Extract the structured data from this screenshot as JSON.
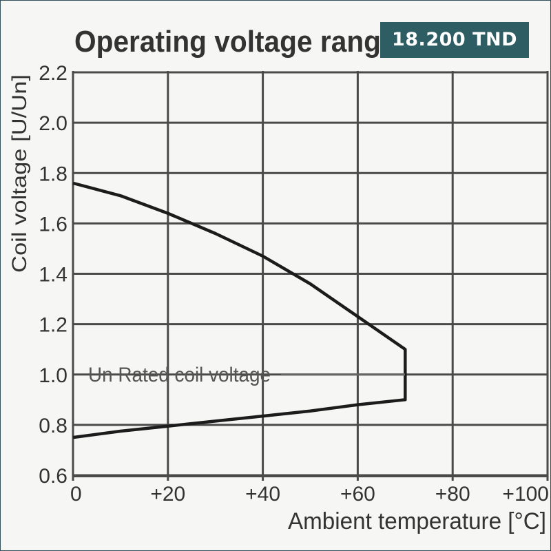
{
  "chart_data": {
    "type": "line",
    "title": "Operating voltage rang",
    "xlabel": "Ambient temperature [°C]",
    "ylabel": "Coil voltage [U/Un]",
    "xlim": [
      0,
      100
    ],
    "ylim": [
      0.6,
      2.2
    ],
    "x_ticks": [
      "0",
      "+20",
      "+40",
      "+60",
      "+80",
      "+100"
    ],
    "x_tick_values": [
      0,
      20,
      40,
      60,
      80,
      100
    ],
    "y_ticks": [
      "0.6",
      "0.8",
      "1.0",
      "1.2",
      "1.4",
      "1.6",
      "1.8",
      "2.0",
      "2.2"
    ],
    "y_tick_values": [
      0.6,
      0.8,
      1.0,
      1.2,
      1.4,
      1.6,
      1.8,
      2.0,
      2.2
    ],
    "grid": true,
    "series": [
      {
        "x": [
          0,
          10,
          20,
          30,
          40,
          50,
          60,
          70,
          70,
          60,
          50,
          40,
          30,
          20,
          10,
          0
        ],
        "y": [
          1.76,
          1.71,
          1.64,
          1.56,
          1.47,
          1.36,
          1.23,
          1.1,
          0.9,
          0.88,
          0.855,
          0.835,
          0.815,
          0.795,
          0.775,
          0.75
        ]
      }
    ],
    "annotation": {
      "text": "Un Rated coil voltage",
      "x": 20,
      "y": 1.0
    },
    "line_color": "#1c1c1c",
    "grid_color": "#4a4a4a",
    "text_color": "#333333"
  },
  "price_badge": {
    "text": "18.200 TND",
    "background": "#2e5e63"
  }
}
